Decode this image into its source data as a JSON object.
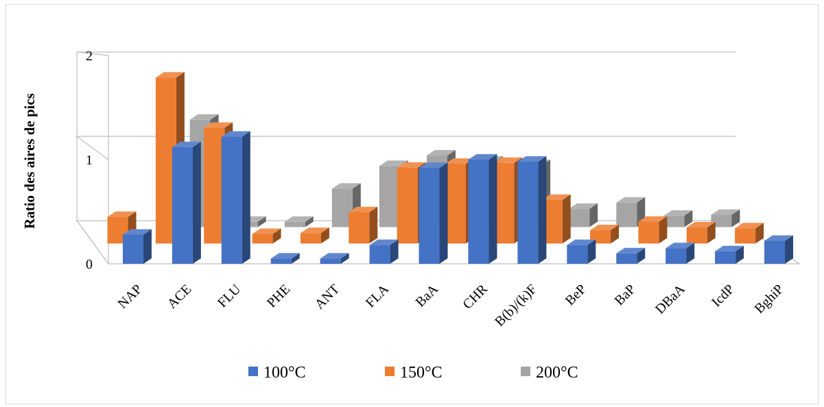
{
  "chart_data": {
    "type": "bar",
    "variant": "3d-column",
    "title": "",
    "xlabel": "",
    "ylabel": "Ratio des aires de pics",
    "ylim": [
      0,
      2
    ],
    "yticks": [
      "0",
      "1",
      "2"
    ],
    "grid": true,
    "legend_position": "bottom",
    "categories": [
      "NAP",
      "ACE",
      "FLU",
      "PHE",
      "ANT",
      "FLA",
      "BaA",
      "CHR",
      "B(b)/(k)F",
      "BeP",
      "BaP",
      "DBaA",
      "IcdP",
      "BghiP"
    ],
    "series": [
      {
        "name": "100°C",
        "color": "#4472c4",
        "values": [
          0.28,
          1.12,
          1.22,
          0.05,
          0.05,
          0.18,
          0.92,
          1.0,
          0.98,
          0.18,
          0.1,
          0.15,
          0.12,
          0.22
        ]
      },
      {
        "name": "150°C",
        "color": "#ed7d31",
        "values": [
          0.28,
          1.75,
          1.22,
          0.1,
          0.11,
          0.33,
          0.8,
          0.84,
          0.85,
          0.46,
          0.14,
          0.23,
          0.17,
          0.16
        ]
      },
      {
        "name": "200°C",
        "color": "#a5a5a5",
        "values": [
          null,
          null,
          1.23,
          0.06,
          0.06,
          0.44,
          0.7,
          0.82,
          0.75,
          0.71,
          0.21,
          0.28,
          0.13,
          0.14
        ]
      }
    ]
  }
}
